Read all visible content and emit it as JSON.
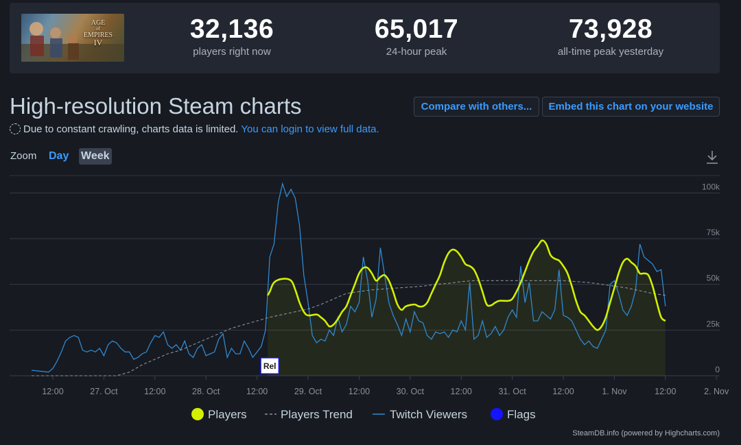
{
  "stats": [
    {
      "value": "32,136",
      "label": "players right now"
    },
    {
      "value": "65,017",
      "label": "24-hour peak"
    },
    {
      "value": "73,928",
      "label": "all-time peak yesterday"
    }
  ],
  "game_logo": {
    "line1": "AGE",
    "line2": "EMPIRES",
    "line3": "IV",
    "small": "of"
  },
  "heading": "High-resolution Steam charts",
  "buttons": {
    "compare": "Compare with others...",
    "embed": "Embed this chart on your website"
  },
  "notice": {
    "text": "Due to constant crawling, charts data is limited.",
    "link": "You can login to view full data."
  },
  "zoom": {
    "label": "Zoom",
    "day": "Day",
    "week": "Week"
  },
  "footer": "SteamDB.info (powered by Highcharts.com)",
  "colors": {
    "players": "#d2f000",
    "twitch": "#2f89d0",
    "trend": "#8a929c",
    "flags": "#1414ff",
    "accent": "#3b9bff"
  },
  "chart_data": {
    "type": "line",
    "x_unit": "hours since 27 Oct 00:00",
    "x_ticks": [
      {
        "x": 12,
        "label": "12:00"
      },
      {
        "x": 24,
        "label": "27. Oct"
      },
      {
        "x": 36,
        "label": "12:00"
      },
      {
        "x": 48,
        "label": "28. Oct"
      },
      {
        "x": 60,
        "label": "12:00"
      },
      {
        "x": 72,
        "label": "29. Oct"
      },
      {
        "x": 84,
        "label": "12:00"
      },
      {
        "x": 96,
        "label": "30. Oct"
      },
      {
        "x": 108,
        "label": "12:00"
      },
      {
        "x": 120,
        "label": "31. Oct"
      },
      {
        "x": 132,
        "label": "12:00"
      },
      {
        "x": 144,
        "label": "1. Nov"
      },
      {
        "x": 156,
        "label": "12:00"
      },
      {
        "x": 168,
        "label": "2. Nov"
      }
    ],
    "y_ticks": [
      {
        "y": 0,
        "label": "0"
      },
      {
        "y": 25000,
        "label": "25k"
      },
      {
        "y": 50000,
        "label": "50k"
      },
      {
        "y": 75000,
        "label": "75k"
      },
      {
        "y": 100000,
        "label": "100k"
      }
    ],
    "xlim": [
      7,
      170
    ],
    "ylim": [
      0,
      105000
    ],
    "legend": {
      "position": "bottom",
      "items": [
        "Players",
        "Players Trend",
        "Twitch Viewers",
        "Flags"
      ]
    },
    "flags": [
      {
        "x": 63,
        "label": "Rel"
      }
    ],
    "series": [
      {
        "name": "Players",
        "points": [
          [
            62.5,
            44000
          ],
          [
            63,
            46000
          ],
          [
            64,
            51000
          ],
          [
            66,
            53000
          ],
          [
            68,
            52000
          ],
          [
            69,
            47000
          ],
          [
            70,
            40000
          ],
          [
            71,
            35000
          ],
          [
            72,
            33000
          ],
          [
            74,
            33500
          ],
          [
            75,
            32000
          ],
          [
            76,
            30000
          ],
          [
            77,
            27000
          ],
          [
            78,
            28000
          ],
          [
            79,
            31000
          ],
          [
            80,
            35000
          ],
          [
            81,
            38000
          ],
          [
            82,
            44000
          ],
          [
            83,
            50000
          ],
          [
            84,
            56000
          ],
          [
            85,
            59000
          ],
          [
            86,
            59000
          ],
          [
            87,
            56000
          ],
          [
            88,
            52000
          ],
          [
            89,
            54000
          ],
          [
            90,
            55000
          ],
          [
            91,
            52000
          ],
          [
            92,
            46000
          ],
          [
            93,
            39000
          ],
          [
            94,
            36000
          ],
          [
            95,
            38000
          ],
          [
            97,
            39000
          ],
          [
            98,
            38000
          ],
          [
            99,
            38000
          ],
          [
            100,
            40000
          ],
          [
            101,
            45000
          ],
          [
            102,
            50000
          ],
          [
            103,
            55000
          ],
          [
            104,
            62000
          ],
          [
            105,
            67000
          ],
          [
            106,
            69000
          ],
          [
            107,
            68000
          ],
          [
            108,
            65000
          ],
          [
            109,
            61000
          ],
          [
            110,
            60000
          ],
          [
            111,
            58000
          ],
          [
            112,
            53000
          ],
          [
            113,
            46000
          ],
          [
            114,
            39000
          ],
          [
            115,
            38500
          ],
          [
            116,
            40000
          ],
          [
            117,
            41000
          ],
          [
            119,
            41000
          ],
          [
            120,
            42000
          ],
          [
            121,
            46000
          ],
          [
            122,
            51000
          ],
          [
            123,
            57000
          ],
          [
            124,
            63000
          ],
          [
            125,
            68000
          ],
          [
            126,
            71000
          ],
          [
            127,
            74000
          ],
          [
            128,
            72000
          ],
          [
            129,
            66000
          ],
          [
            130,
            64000
          ],
          [
            131,
            63000
          ],
          [
            132,
            60000
          ],
          [
            133,
            56000
          ],
          [
            134,
            49000
          ],
          [
            135,
            41000
          ],
          [
            136,
            35000
          ],
          [
            137,
            33000
          ],
          [
            138,
            30000
          ],
          [
            139,
            27000
          ],
          [
            140,
            25000
          ],
          [
            141,
            27000
          ],
          [
            142,
            32000
          ],
          [
            143,
            40000
          ],
          [
            144,
            48000
          ],
          [
            145,
            56000
          ],
          [
            146,
            62000
          ],
          [
            147,
            64000
          ],
          [
            148,
            62000
          ],
          [
            149,
            60000
          ],
          [
            150,
            56000
          ],
          [
            151,
            56000
          ],
          [
            152,
            55000
          ],
          [
            153,
            49000
          ],
          [
            154,
            40000
          ],
          [
            155,
            32000
          ],
          [
            156,
            30000
          ]
        ]
      },
      {
        "name": "Players Trend",
        "points": [
          [
            7,
            0
          ],
          [
            20,
            0
          ],
          [
            24,
            0
          ],
          [
            27,
            0
          ],
          [
            30,
            2000
          ],
          [
            33,
            6000
          ],
          [
            36,
            9000
          ],
          [
            39,
            12000
          ],
          [
            42,
            14000
          ],
          [
            45,
            17000
          ],
          [
            48,
            20000
          ],
          [
            51,
            23000
          ],
          [
            54,
            26000
          ],
          [
            57,
            28000
          ],
          [
            60,
            30000
          ],
          [
            63,
            32000
          ],
          [
            66,
            33500
          ],
          [
            69,
            35000
          ],
          [
            72,
            36500
          ],
          [
            75,
            39000
          ],
          [
            78,
            42000
          ],
          [
            81,
            45000
          ],
          [
            84,
            46000
          ],
          [
            87,
            47000
          ],
          [
            90,
            47500
          ],
          [
            93,
            48000
          ],
          [
            96,
            48500
          ],
          [
            99,
            49000
          ],
          [
            102,
            50000
          ],
          [
            105,
            50500
          ],
          [
            108,
            51500
          ],
          [
            111,
            52000
          ],
          [
            114,
            52000
          ],
          [
            117,
            52000
          ],
          [
            120,
            52000
          ],
          [
            123,
            52000
          ],
          [
            126,
            52000
          ],
          [
            129,
            52000
          ],
          [
            132,
            52000
          ],
          [
            135,
            51500
          ],
          [
            138,
            51000
          ],
          [
            141,
            50000
          ],
          [
            144,
            49000
          ],
          [
            147,
            48000
          ],
          [
            150,
            46500
          ],
          [
            153,
            45000
          ],
          [
            156,
            44000
          ]
        ]
      },
      {
        "name": "Twitch Viewers",
        "points": [
          [
            7,
            3000
          ],
          [
            9,
            2500
          ],
          [
            11,
            2000
          ],
          [
            12,
            4000
          ],
          [
            13,
            8000
          ],
          [
            14,
            13000
          ],
          [
            15,
            19000
          ],
          [
            16,
            21000
          ],
          [
            17,
            22000
          ],
          [
            18,
            21000
          ],
          [
            19,
            14000
          ],
          [
            20,
            13000
          ],
          [
            21,
            14000
          ],
          [
            22,
            13000
          ],
          [
            23,
            15000
          ],
          [
            24,
            11000
          ],
          [
            25,
            17000
          ],
          [
            26,
            19000
          ],
          [
            27,
            18000
          ],
          [
            28,
            15000
          ],
          [
            29,
            13000
          ],
          [
            30,
            13000
          ],
          [
            31,
            9000
          ],
          [
            32,
            10000
          ],
          [
            33,
            12000
          ],
          [
            34,
            13000
          ],
          [
            35,
            18000
          ],
          [
            36,
            22000
          ],
          [
            37,
            21000
          ],
          [
            38,
            24000
          ],
          [
            39,
            17000
          ],
          [
            40,
            15000
          ],
          [
            41,
            17000
          ],
          [
            42,
            14000
          ],
          [
            43,
            19000
          ],
          [
            44,
            12000
          ],
          [
            45,
            10000
          ],
          [
            46,
            15000
          ],
          [
            47,
            17000
          ],
          [
            48,
            11000
          ],
          [
            49,
            12000
          ],
          [
            50,
            13000
          ],
          [
            51,
            20000
          ],
          [
            52,
            23000
          ],
          [
            53,
            10000
          ],
          [
            54,
            15000
          ],
          [
            55,
            12000
          ],
          [
            56,
            12000
          ],
          [
            57,
            19000
          ],
          [
            58,
            15000
          ],
          [
            59,
            10000
          ],
          [
            60,
            13000
          ],
          [
            61,
            16000
          ],
          [
            62,
            25000
          ],
          [
            63,
            65000
          ],
          [
            64,
            72000
          ],
          [
            65,
            95000
          ],
          [
            66,
            105000
          ],
          [
            67,
            98000
          ],
          [
            68,
            102000
          ],
          [
            69,
            97000
          ],
          [
            70,
            82000
          ],
          [
            71,
            55000
          ],
          [
            72,
            40000
          ],
          [
            73,
            22000
          ],
          [
            74,
            18000
          ],
          [
            75,
            20000
          ],
          [
            76,
            19000
          ],
          [
            77,
            25000
          ],
          [
            78,
            22000
          ],
          [
            79,
            32000
          ],
          [
            80,
            24000
          ],
          [
            81,
            28000
          ],
          [
            82,
            38000
          ],
          [
            83,
            35000
          ],
          [
            84,
            40000
          ],
          [
            85,
            65000
          ],
          [
            86,
            52000
          ],
          [
            87,
            32000
          ],
          [
            88,
            42000
          ],
          [
            89,
            70000
          ],
          [
            90,
            55000
          ],
          [
            91,
            40000
          ],
          [
            92,
            33000
          ],
          [
            93,
            28000
          ],
          [
            94,
            22000
          ],
          [
            95,
            31000
          ],
          [
            96,
            24000
          ],
          [
            97,
            35000
          ],
          [
            98,
            30000
          ],
          [
            99,
            29000
          ],
          [
            100,
            22000
          ],
          [
            101,
            20000
          ],
          [
            102,
            24000
          ],
          [
            103,
            23000
          ],
          [
            104,
            24000
          ],
          [
            105,
            21000
          ],
          [
            106,
            25000
          ],
          [
            107,
            24000
          ],
          [
            108,
            30000
          ],
          [
            109,
            25000
          ],
          [
            110,
            51000
          ],
          [
            111,
            20000
          ],
          [
            112,
            22000
          ],
          [
            113,
            30000
          ],
          [
            114,
            21000
          ],
          [
            115,
            23000
          ],
          [
            116,
            27000
          ],
          [
            117,
            22000
          ],
          [
            118,
            25000
          ],
          [
            119,
            32000
          ],
          [
            120,
            36000
          ],
          [
            121,
            32000
          ],
          [
            122,
            60000
          ],
          [
            123,
            40000
          ],
          [
            124,
            51000
          ],
          [
            125,
            30000
          ],
          [
            126,
            30000
          ],
          [
            127,
            35000
          ],
          [
            128,
            33000
          ],
          [
            129,
            31000
          ],
          [
            130,
            36000
          ],
          [
            131,
            58000
          ],
          [
            132,
            33000
          ],
          [
            133,
            32000
          ],
          [
            134,
            30000
          ],
          [
            135,
            25000
          ],
          [
            136,
            20000
          ],
          [
            137,
            17000
          ],
          [
            138,
            19000
          ],
          [
            139,
            16000
          ],
          [
            140,
            15000
          ],
          [
            141,
            20000
          ],
          [
            142,
            25000
          ],
          [
            143,
            50000
          ],
          [
            144,
            52000
          ],
          [
            145,
            45000
          ],
          [
            146,
            36000
          ],
          [
            147,
            33000
          ],
          [
            148,
            38000
          ],
          [
            149,
            47000
          ],
          [
            150,
            72000
          ],
          [
            151,
            65000
          ],
          [
            152,
            63000
          ],
          [
            153,
            61000
          ],
          [
            154,
            57000
          ],
          [
            155,
            58000
          ],
          [
            156,
            38000
          ]
        ]
      }
    ]
  }
}
